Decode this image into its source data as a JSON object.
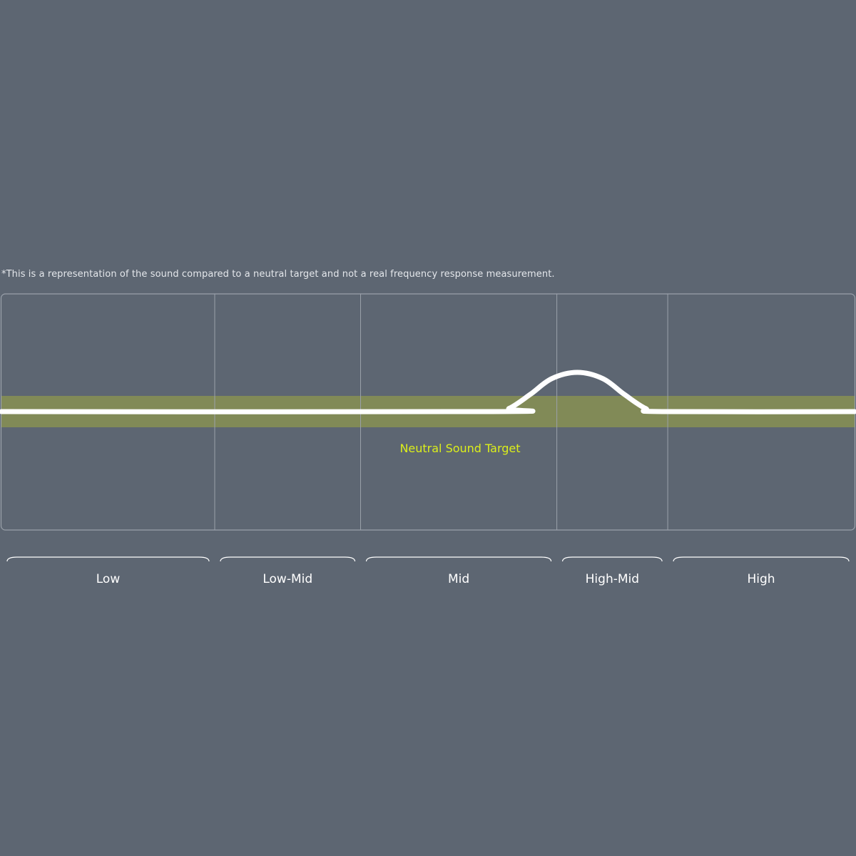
{
  "disclaimer": "*This is a representation of the sound compared to a neutral target and not a real frequency response measurement.",
  "colors": {
    "background": "#5d6672",
    "grid": "#9aa1aa",
    "target_band": "#818a57",
    "curve": "#ffffff",
    "target_label": "#dcef1a",
    "band_label": "#ffffff"
  },
  "chart_data": {
    "type": "line",
    "title": "",
    "xlabel": "",
    "ylabel": "",
    "target_label": "Neutral Sound Target",
    "categories": [
      "Low",
      "Low-Mid",
      "Mid",
      "High-Mid",
      "High"
    ],
    "category_widths": [
      25,
      17.1,
      23,
      13,
      21.9
    ],
    "target_band": [
      -1,
      1
    ],
    "ylim": [
      -7.5,
      7.5
    ],
    "grid": "vertical category dividers",
    "series": [
      {
        "x": [
          0,
          57.5,
          59.5,
          62,
          64.5,
          67.5,
          70.5,
          73,
          75.5,
          77.5,
          100
        ],
        "values": [
          0,
          0,
          0.2,
          1.1,
          2.1,
          2.5,
          2.1,
          1.1,
          0.2,
          0,
          0
        ]
      }
    ]
  }
}
